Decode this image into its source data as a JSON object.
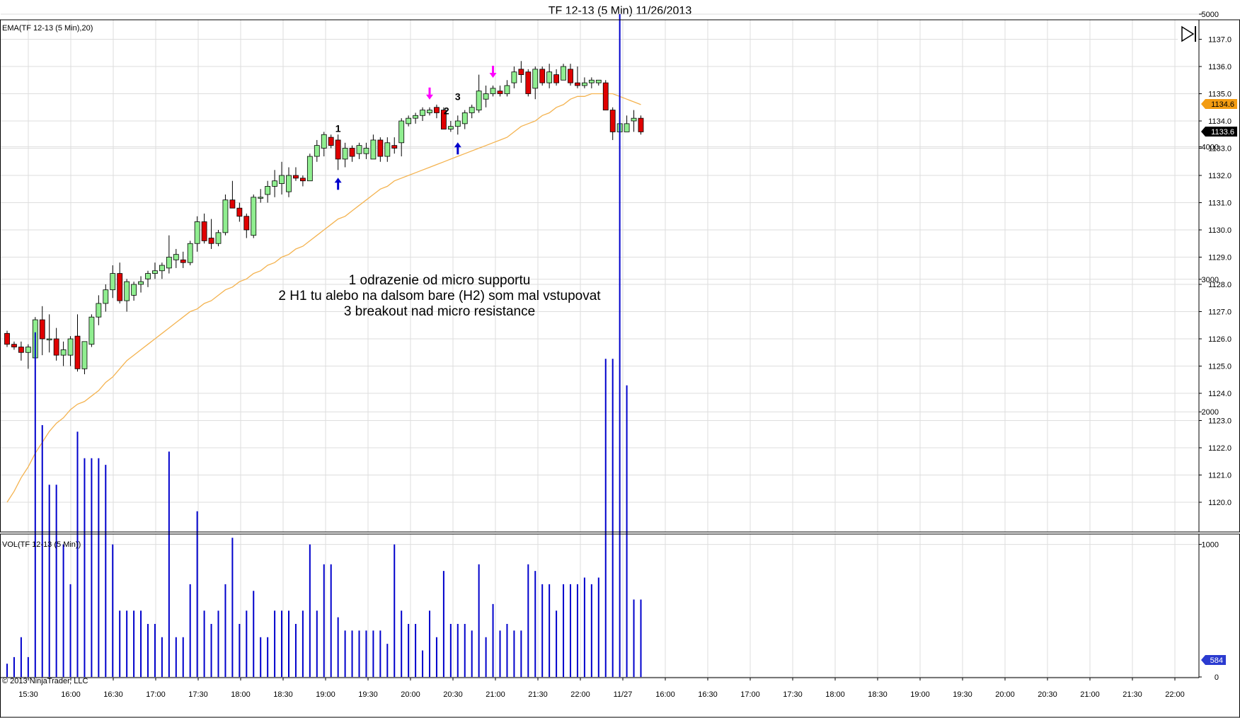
{
  "title": "TF 12-13 (5 Min)  11/26/2013",
  "price_panel_label": "EMA(TF 12-13 (5 Min),20)",
  "volume_panel_label": "VOL(TF 12-13 (5 Min))",
  "copyright": "© 2013 NinjaTrader, LLC",
  "annotations": [
    "1 odrazenie od micro supportu",
    "2 H1 tu alebo na dalsom bare (H2) som mal vstupovat",
    "3 breakout nad micro resistance"
  ],
  "colors": {
    "up_candle": "#90ee90",
    "down_candle": "#e00000",
    "ema": "#f4b350",
    "volume": "#0000cc",
    "grid": "#dedede",
    "ema_badge": "#f39c12",
    "price_badge": "#000000",
    "volume_badge": "#2b3bd0",
    "arrow_up": "#0000cc",
    "arrow_down": "#ff00ff"
  },
  "icons": [
    "skip-to-end-icon"
  ],
  "chart_data": {
    "type": "candlestick",
    "price_axis": {
      "ticks": [
        "1120.0",
        "1121.0",
        "1122.0",
        "1123.0",
        "1124.0",
        "1125.0",
        "1126.0",
        "1127.0",
        "1128.0",
        "1129.0",
        "1130.0",
        "1131.0",
        "1132.0",
        "1133.0",
        "1134.0",
        "1135.0",
        "1136.0",
        "1137.0"
      ],
      "ylim": [
        1119.5,
        1137.3
      ]
    },
    "volume_axis": {
      "ticks": [
        "0",
        "1000",
        "2000",
        "3000",
        "4000",
        "5000"
      ],
      "ylim": [
        0,
        5300
      ]
    },
    "x_labels": [
      "15:30",
      "16:00",
      "16:30",
      "17:00",
      "17:30",
      "18:00",
      "18:30",
      "19:00",
      "19:30",
      "20:00",
      "20:30",
      "21:00",
      "21:30",
      "22:00",
      "11/27",
      "16:00",
      "16:30",
      "17:00",
      "17:30",
      "18:00",
      "18:30",
      "19:00",
      "19:30",
      "20:00",
      "20:30",
      "21:00",
      "21:30",
      "22:00"
    ],
    "last_price": "1133.6",
    "ema_last": "1134.6",
    "volume_last": "584",
    "candles": [
      [
        1126.2,
        1126.3,
        1125.7,
        1125.8,
        100
      ],
      [
        1125.8,
        1125.9,
        1125.6,
        1125.7,
        150
      ],
      [
        1125.7,
        1125.9,
        1125.2,
        1125.5,
        300
      ],
      [
        1125.5,
        1125.8,
        1124.9,
        1125.7,
        150
      ],
      [
        1125.3,
        1126.8,
        1125.0,
        1126.7,
        2600
      ],
      [
        1126.7,
        1127.2,
        1125.4,
        1126.0,
        1900
      ],
      [
        1126.0,
        1126.9,
        1125.5,
        1126.0,
        1450
      ],
      [
        1126.0,
        1126.4,
        1125.2,
        1125.4,
        1450
      ],
      [
        1125.4,
        1125.9,
        1125.0,
        1125.6,
        1000
      ],
      [
        1125.4,
        1126.1,
        1125.0,
        1126.0,
        700
      ],
      [
        1126.1,
        1126.9,
        1124.8,
        1124.9,
        1850
      ],
      [
        1124.9,
        1125.9,
        1124.7,
        1125.9,
        1650
      ],
      [
        1125.8,
        1126.9,
        1125.7,
        1126.8,
        1650
      ],
      [
        1126.8,
        1127.6,
        1126.5,
        1127.3,
        1650
      ],
      [
        1127.3,
        1128.0,
        1127.0,
        1127.8,
        1600
      ],
      [
        1127.8,
        1128.7,
        1127.5,
        1128.4,
        1000
      ],
      [
        1128.4,
        1128.8,
        1127.3,
        1127.4,
        500
      ],
      [
        1127.4,
        1128.2,
        1127.0,
        1128.1,
        500
      ],
      [
        1127.6,
        1128.1,
        1127.4,
        1128.0,
        500
      ],
      [
        1128.0,
        1128.3,
        1127.7,
        1128.1,
        500
      ],
      [
        1128.2,
        1128.5,
        1127.9,
        1128.4,
        400
      ],
      [
        1128.4,
        1128.8,
        1128.2,
        1128.5,
        400
      ],
      [
        1128.5,
        1128.8,
        1128.2,
        1128.7,
        300
      ],
      [
        1128.6,
        1129.8,
        1128.4,
        1129.0,
        1700
      ],
      [
        1128.9,
        1129.3,
        1128.6,
        1129.1,
        300
      ],
      [
        1128.9,
        1129.2,
        1128.6,
        1128.8,
        300
      ],
      [
        1128.8,
        1129.6,
        1128.7,
        1129.5,
        700
      ],
      [
        1129.5,
        1130.5,
        1129.2,
        1130.3,
        1250
      ],
      [
        1130.3,
        1130.6,
        1129.5,
        1129.6,
        500
      ],
      [
        1129.7,
        1130.4,
        1129.3,
        1129.5,
        400
      ],
      [
        1129.5,
        1130.0,
        1129.4,
        1129.9,
        500
      ],
      [
        1129.9,
        1131.3,
        1129.8,
        1131.1,
        700
      ],
      [
        1131.1,
        1131.8,
        1130.8,
        1130.8,
        1050
      ],
      [
        1130.8,
        1131.0,
        1130.3,
        1130.5,
        400
      ],
      [
        1130.5,
        1130.6,
        1129.7,
        1130.0,
        500
      ],
      [
        1129.8,
        1131.3,
        1129.7,
        1131.2,
        650
      ],
      [
        1131.2,
        1131.5,
        1131.0,
        1131.2,
        300
      ],
      [
        1131.3,
        1131.8,
        1131.0,
        1131.6,
        300
      ],
      [
        1131.6,
        1132.2,
        1131.2,
        1131.8,
        500
      ],
      [
        1131.7,
        1132.5,
        1131.3,
        1132.0,
        500
      ],
      [
        1131.4,
        1132.3,
        1131.2,
        1132.0,
        500
      ],
      [
        1132.0,
        1132.3,
        1131.8,
        1131.9,
        400
      ],
      [
        1131.9,
        1132.0,
        1131.6,
        1131.8,
        500
      ],
      [
        1131.8,
        1132.8,
        1131.8,
        1132.7,
        1000
      ],
      [
        1132.7,
        1133.3,
        1132.5,
        1133.1,
        500
      ],
      [
        1133.0,
        1133.6,
        1132.7,
        1133.5,
        850
      ],
      [
        1133.4,
        1133.5,
        1133.0,
        1133.1,
        850
      ],
      [
        1133.3,
        1133.5,
        1132.2,
        1132.6,
        450
      ],
      [
        1132.6,
        1133.2,
        1132.3,
        1133.0,
        350
      ],
      [
        1133.0,
        1133.1,
        1132.5,
        1132.7,
        350
      ],
      [
        1132.8,
        1133.2,
        1132.6,
        1133.1,
        350
      ],
      [
        1132.8,
        1133.2,
        1132.6,
        1133.0,
        350
      ],
      [
        1132.6,
        1133.5,
        1132.6,
        1133.3,
        350
      ],
      [
        1133.3,
        1133.4,
        1132.5,
        1132.7,
        350
      ],
      [
        1132.7,
        1133.4,
        1132.5,
        1133.2,
        250
      ],
      [
        1133.1,
        1133.4,
        1132.8,
        1133.0,
        1000
      ],
      [
        1133.2,
        1134.1,
        1132.7,
        1134.0,
        500
      ],
      [
        1133.9,
        1134.2,
        1133.8,
        1134.1,
        400
      ],
      [
        1134.1,
        1134.3,
        1133.9,
        1134.2,
        400
      ],
      [
        1134.2,
        1134.5,
        1134.0,
        1134.4,
        200
      ],
      [
        1134.3,
        1134.5,
        1134.2,
        1134.4,
        500
      ],
      [
        1134.5,
        1134.6,
        1134.1,
        1134.3,
        300
      ],
      [
        1134.4,
        1134.5,
        1133.8,
        1133.7,
        800
      ],
      [
        1133.7,
        1134.0,
        1133.6,
        1133.8,
        400
      ],
      [
        1133.8,
        1134.2,
        1133.5,
        1134.0,
        400
      ],
      [
        1133.9,
        1134.4,
        1133.7,
        1134.3,
        400
      ],
      [
        1134.3,
        1134.6,
        1134.1,
        1134.5,
        350
      ],
      [
        1134.4,
        1135.7,
        1134.3,
        1135.1,
        850
      ],
      [
        1134.8,
        1135.3,
        1134.5,
        1135.0,
        300
      ],
      [
        1135.0,
        1135.3,
        1134.9,
        1135.2,
        550
      ],
      [
        1135.1,
        1135.3,
        1134.9,
        1135.0,
        350
      ],
      [
        1135.0,
        1135.5,
        1134.9,
        1135.3,
        400
      ],
      [
        1135.4,
        1136.0,
        1135.2,
        1135.8,
        350
      ],
      [
        1135.9,
        1136.2,
        1135.4,
        1135.7,
        350
      ],
      [
        1135.8,
        1135.9,
        1134.9,
        1135.0,
        850
      ],
      [
        1135.2,
        1136.0,
        1134.8,
        1135.9,
        800
      ],
      [
        1135.9,
        1136.0,
        1135.3,
        1135.4,
        700
      ],
      [
        1135.4,
        1136.1,
        1135.2,
        1135.8,
        700
      ],
      [
        1135.7,
        1135.9,
        1135.3,
        1135.4,
        500
      ],
      [
        1135.5,
        1136.1,
        1135.5,
        1136.0,
        700
      ],
      [
        1135.9,
        1136.1,
        1135.3,
        1135.4,
        700
      ],
      [
        1135.4,
        1136.0,
        1135.2,
        1135.3,
        700
      ],
      [
        1135.3,
        1135.6,
        1135.2,
        1135.4,
        750
      ],
      [
        1135.4,
        1135.6,
        1135.2,
        1135.5,
        700
      ],
      [
        1135.4,
        1135.5,
        1135.3,
        1135.5,
        750
      ],
      [
        1135.4,
        1135.5,
        1134.4,
        1134.4,
        2400
      ],
      [
        1134.4,
        1134.5,
        1133.3,
        1133.6,
        2400
      ],
      [
        1133.6,
        1134.2,
        1132.9,
        1133.9,
        5000
      ],
      [
        1133.6,
        1134.2,
        1133.6,
        1133.9,
        2200
      ],
      [
        1134.0,
        1134.4,
        1133.6,
        1134.1,
        584
      ],
      [
        1134.1,
        1134.2,
        1133.5,
        1133.6,
        584
      ]
    ],
    "ema": [
      1120.0,
      1120.4,
      1120.9,
      1121.3,
      1121.8,
      1122.2,
      1122.6,
      1122.9,
      1123.1,
      1123.4,
      1123.6,
      1123.7,
      1123.9,
      1124.1,
      1124.4,
      1124.6,
      1124.9,
      1125.2,
      1125.4,
      1125.6,
      1125.8,
      1126.0,
      1126.2,
      1126.4,
      1126.6,
      1126.8,
      1127.0,
      1127.1,
      1127.3,
      1127.4,
      1127.6,
      1127.8,
      1127.9,
      1128.1,
      1128.2,
      1128.4,
      1128.5,
      1128.7,
      1128.8,
      1129.0,
      1129.1,
      1129.3,
      1129.4,
      1129.6,
      1129.8,
      1130.0,
      1130.2,
      1130.4,
      1130.5,
      1130.7,
      1130.9,
      1131.1,
      1131.3,
      1131.5,
      1131.6,
      1131.8,
      1131.9,
      1132.0,
      1132.1,
      1132.2,
      1132.3,
      1132.4,
      1132.5,
      1132.6,
      1132.7,
      1132.8,
      1132.9,
      1133.0,
      1133.1,
      1133.2,
      1133.3,
      1133.4,
      1133.6,
      1133.8,
      1133.9,
      1134.0,
      1134.2,
      1134.3,
      1134.5,
      1134.6,
      1134.8,
      1134.9,
      1134.9,
      1135.0,
      1135.0,
      1135.0,
      1135.0,
      1134.9,
      1134.8,
      1134.7,
      1134.6
    ],
    "markers": [
      {
        "label": "1",
        "index": 47,
        "arrow": "up"
      },
      {
        "label": "2",
        "index": 64,
        "arrow": "up"
      },
      {
        "label": "3",
        "index": 64,
        "arrow": "none"
      },
      {
        "label": "",
        "index": 60,
        "arrow": "down"
      },
      {
        "label": "",
        "index": 69,
        "arrow": "down"
      }
    ]
  }
}
